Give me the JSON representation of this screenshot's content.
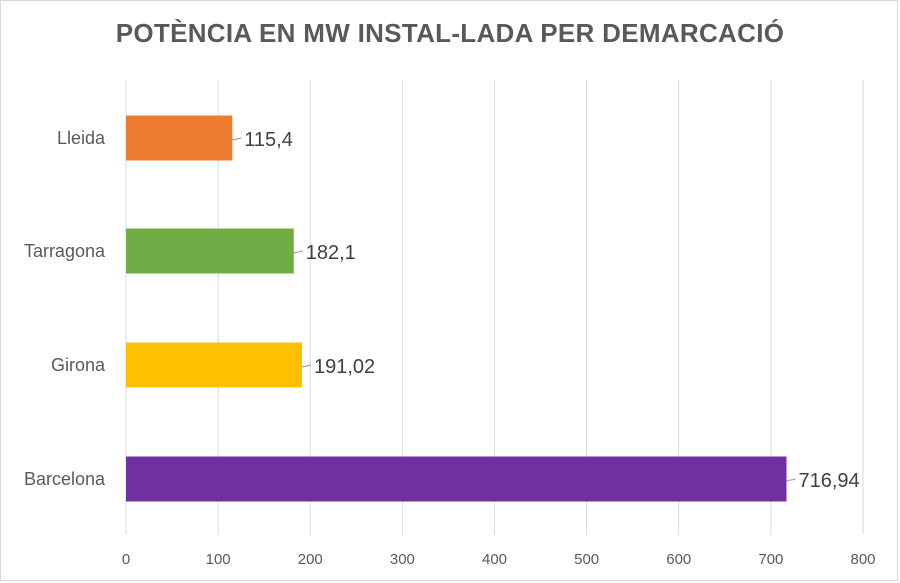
{
  "chart_data": {
    "type": "bar",
    "orientation": "horizontal",
    "title": "POTÈNCIA EN MW INSTAL-LADA PER DEMARCACIÓ",
    "xlabel": "",
    "ylabel": "",
    "xlim": [
      0,
      800
    ],
    "x_ticks": [
      0,
      100,
      200,
      300,
      400,
      500,
      600,
      700,
      800
    ],
    "x_tick_labels": [
      "0",
      "100",
      "200",
      "300",
      "400",
      "500",
      "600",
      "700",
      "800"
    ],
    "grid": "vertical major gridlines",
    "legend": "none",
    "categories": [
      "Lleida",
      "Tarragona",
      "Girona",
      "Barcelona"
    ],
    "values": [
      115.4,
      182.1,
      191.02,
      716.94
    ],
    "data_labels": [
      "115,4",
      "182,1",
      "191,02",
      "716,94"
    ],
    "colors": [
      "#ed7d31",
      "#70ad47",
      "#ffc000",
      "#7030a0"
    ]
  }
}
